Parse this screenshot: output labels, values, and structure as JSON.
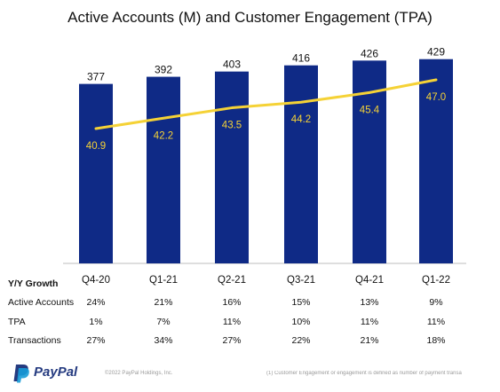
{
  "chart_data": {
    "type": "bar",
    "title": "Active Accounts (M) and Customer Engagement (TPA)",
    "categories": [
      "Q4-20",
      "Q1-21",
      "Q2-21",
      "Q3-21",
      "Q4-21",
      "Q1-22"
    ],
    "series": [
      {
        "name": "",
        "type": "bar",
        "values": [
          377,
          392,
          403,
          416,
          426,
          429
        ],
        "color": "#0f2a86"
      },
      {
        "name": "",
        "type": "line",
        "values": [
          40.9,
          42.2,
          43.5,
          44.2,
          45.4,
          47.0
        ],
        "color": "#f5d236"
      }
    ],
    "bar_labels": [
      "377",
      "392",
      "403",
      "416",
      "426",
      "429"
    ],
    "line_labels": [
      "40.9",
      "42.2",
      "43.5",
      "44.2",
      "45.4",
      "47.0"
    ],
    "bar_label_color": "#111111",
    "line_label_color": "#f5d236",
    "axis_color": "#bdbdbd"
  },
  "growth": {
    "title": "Y/Y Growth",
    "rows": [
      {
        "label": "Active Accounts",
        "values": [
          "24%",
          "21%",
          "16%",
          "15%",
          "13%",
          "9%"
        ]
      },
      {
        "label": "TPA",
        "values": [
          "1%",
          "7%",
          "11%",
          "10%",
          "11%",
          "11%"
        ]
      },
      {
        "label": "Transactions",
        "values": [
          "27%",
          "34%",
          "27%",
          "22%",
          "21%",
          "18%"
        ]
      }
    ]
  },
  "footer": {
    "logo_text": "PayPal",
    "copyright": "©2022 PayPal Holdings, Inc.",
    "footnote": "(1) Customer Engagement or engagement is defined as number of payment transa",
    "logo_colors": {
      "dark": "#253b80",
      "light": "#179bd7"
    }
  }
}
